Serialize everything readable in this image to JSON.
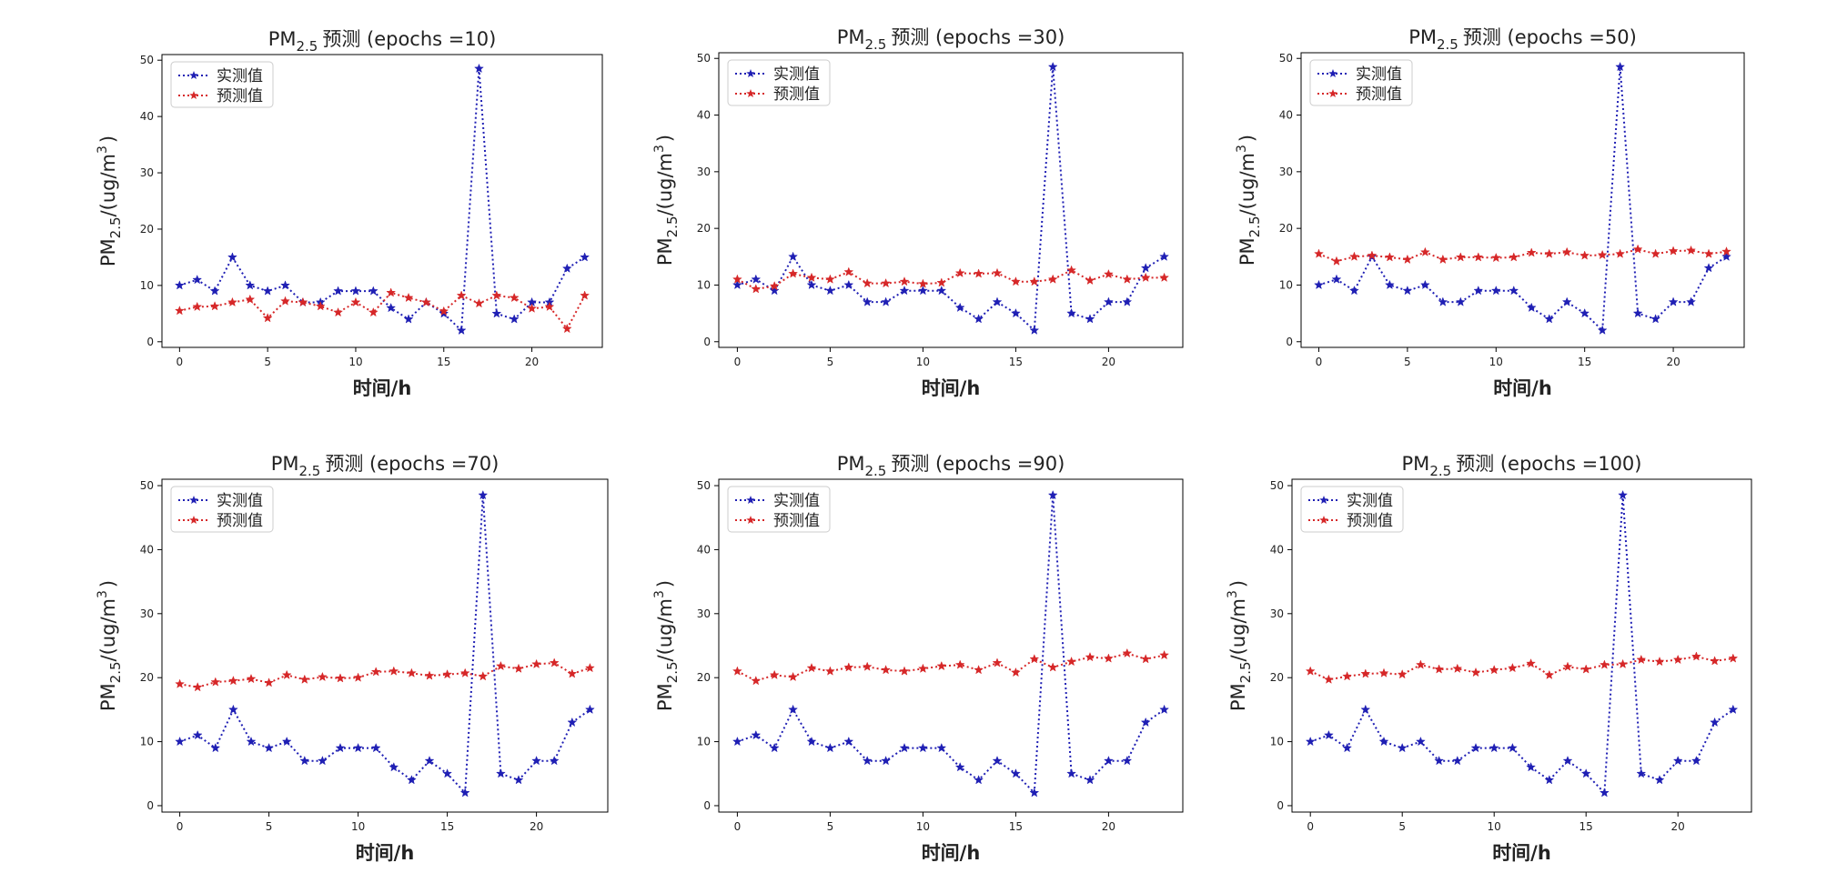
{
  "chart_data": [
    {
      "type": "line",
      "title_prefix": "PM",
      "title_sub": "2.5",
      "title_suffix": "预测 (epochs =10)",
      "xlabel": "时间/h",
      "ylabel_prefix": "PM",
      "ylabel_sub": "2.5",
      "ylabel_suffix": "/(ug/m",
      "ylabel_sup": "3",
      "ylabel_end": ")",
      "xlim": [
        -1,
        24
      ],
      "ylim": [
        -1,
        51
      ],
      "xticks": [
        0,
        5,
        10,
        15,
        20
      ],
      "yticks": [
        0,
        10,
        20,
        30,
        40,
        50
      ],
      "grid": false,
      "legend": "upper-left",
      "series": [
        {
          "name": "实测值",
          "color": "#1f1fb4",
          "values": [
            10,
            11,
            9,
            15,
            10,
            9,
            10,
            7,
            7,
            9,
            9,
            9,
            6,
            4,
            7,
            5,
            2,
            48.5,
            5,
            4,
            7,
            7,
            13,
            15
          ]
        },
        {
          "name": "预测值",
          "color": "#d62728",
          "values": [
            5.5,
            6.2,
            6.3,
            7,
            7.5,
            4.2,
            7.2,
            7,
            6.3,
            5.2,
            7,
            5.2,
            8.7,
            7.8,
            7,
            5.4,
            8.2,
            6.8,
            8.2,
            7.8,
            5.9,
            6.2,
            2.3,
            8.2
          ]
        }
      ]
    },
    {
      "type": "line",
      "title_prefix": "PM",
      "title_sub": "2.5",
      "title_suffix": "预测 (epochs =30)",
      "xlabel": "时间/h",
      "ylabel_prefix": "PM",
      "ylabel_sub": "2.5",
      "ylabel_suffix": "/(ug/m",
      "ylabel_sup": "3",
      "ylabel_end": ")",
      "xlim": [
        -1,
        24
      ],
      "ylim": [
        -1,
        51
      ],
      "xticks": [
        0,
        5,
        10,
        15,
        20
      ],
      "yticks": [
        0,
        10,
        20,
        30,
        40,
        50
      ],
      "grid": false,
      "legend": "upper-left",
      "series": [
        {
          "name": "实测值",
          "color": "#1f1fb4",
          "values": [
            10,
            11,
            9,
            15,
            10,
            9,
            10,
            7,
            7,
            9,
            9,
            9,
            6,
            4,
            7,
            5,
            2,
            48.5,
            5,
            4,
            7,
            7,
            13,
            15
          ]
        },
        {
          "name": "预测值",
          "color": "#d62728",
          "values": [
            11,
            9.3,
            9.8,
            12,
            11.3,
            11,
            12.3,
            10.3,
            10.3,
            10.6,
            10.2,
            10.4,
            12.1,
            12,
            12.1,
            10.6,
            10.6,
            11,
            12.6,
            10.8,
            11.9,
            11,
            11.3,
            11.3
          ]
        }
      ]
    },
    {
      "type": "line",
      "title_prefix": "PM",
      "title_sub": "2.5",
      "title_suffix": "预测 (epochs =50)",
      "xlabel": "时间/h",
      "ylabel_prefix": "PM",
      "ylabel_sub": "2.5",
      "ylabel_suffix": "/(ug/m",
      "ylabel_sup": "3",
      "ylabel_end": ")",
      "xlim": [
        -1,
        24
      ],
      "ylim": [
        -1,
        51
      ],
      "xticks": [
        0,
        5,
        10,
        15,
        20
      ],
      "yticks": [
        0,
        10,
        20,
        30,
        40,
        50
      ],
      "grid": false,
      "legend": "upper-left",
      "series": [
        {
          "name": "实测值",
          "color": "#1f1fb4",
          "values": [
            10,
            11,
            9,
            15,
            10,
            9,
            10,
            7,
            7,
            9,
            9,
            9,
            6,
            4,
            7,
            5,
            2,
            48.5,
            5,
            4,
            7,
            7,
            13,
            15
          ]
        },
        {
          "name": "预测值",
          "color": "#d62728",
          "values": [
            15.5,
            14.2,
            15,
            15.2,
            14.9,
            14.5,
            15.8,
            14.5,
            14.9,
            14.9,
            14.8,
            14.9,
            15.7,
            15.5,
            15.8,
            15.2,
            15.3,
            15.5,
            16.3,
            15.5,
            16,
            16.1,
            15.5,
            15.9
          ]
        }
      ]
    },
    {
      "type": "line",
      "title_prefix": "PM",
      "title_sub": "2.5",
      "title_suffix": "预测 (epochs =70)",
      "xlabel": "时间/h",
      "ylabel_prefix": "PM",
      "ylabel_sub": "2.5",
      "ylabel_suffix": "/(ug/m",
      "ylabel_sup": "3",
      "ylabel_end": ")",
      "xlim": [
        -1,
        24
      ],
      "ylim": [
        -1,
        51
      ],
      "xticks": [
        0,
        5,
        10,
        15,
        20
      ],
      "yticks": [
        0,
        10,
        20,
        30,
        40,
        50
      ],
      "grid": false,
      "legend": "upper-left",
      "series": [
        {
          "name": "实测值",
          "color": "#1f1fb4",
          "values": [
            10,
            11,
            9,
            15,
            10,
            9,
            10,
            7,
            7,
            9,
            9,
            9,
            6,
            4,
            7,
            5,
            2,
            48.5,
            5,
            4,
            7,
            7,
            13,
            15
          ]
        },
        {
          "name": "预测值",
          "color": "#d62728",
          "values": [
            19,
            18.5,
            19.3,
            19.5,
            19.8,
            19.2,
            20.4,
            19.7,
            20.1,
            19.9,
            20,
            20.9,
            21,
            20.7,
            20.3,
            20.5,
            20.7,
            20.2,
            21.8,
            21.4,
            22.1,
            22.3,
            20.6,
            21.5
          ]
        }
      ]
    },
    {
      "type": "line",
      "title_prefix": "PM",
      "title_sub": "2.5",
      "title_suffix": "预测 (epochs =90)",
      "xlabel": "时间/h",
      "ylabel_prefix": "PM",
      "ylabel_sub": "2.5",
      "ylabel_suffix": "/(ug/m",
      "ylabel_sup": "3",
      "ylabel_end": ")",
      "xlim": [
        -1,
        24
      ],
      "ylim": [
        -1,
        51
      ],
      "xticks": [
        0,
        5,
        10,
        15,
        20
      ],
      "yticks": [
        0,
        10,
        20,
        30,
        40,
        50
      ],
      "grid": false,
      "legend": "upper-left",
      "series": [
        {
          "name": "实测值",
          "color": "#1f1fb4",
          "values": [
            10,
            11,
            9,
            15,
            10,
            9,
            10,
            7,
            7,
            9,
            9,
            9,
            6,
            4,
            7,
            5,
            2,
            48.5,
            5,
            4,
            7,
            7,
            13,
            15
          ]
        },
        {
          "name": "预测值",
          "color": "#d62728",
          "values": [
            21,
            19.5,
            20.4,
            20.1,
            21.5,
            21,
            21.6,
            21.7,
            21.2,
            21,
            21.4,
            21.8,
            22,
            21.2,
            22.3,
            20.8,
            22.9,
            21.6,
            22.5,
            23.2,
            23,
            23.8,
            22.9,
            23.5
          ]
        }
      ]
    },
    {
      "type": "line",
      "title_prefix": "PM",
      "title_sub": "2.5",
      "title_suffix": "预测 (epochs =100)",
      "xlabel": "时间/h",
      "ylabel_prefix": "PM",
      "ylabel_sub": "2.5",
      "ylabel_suffix": "/(ug/m",
      "ylabel_sup": "3",
      "ylabel_end": ")",
      "xlim": [
        -1,
        24
      ],
      "ylim": [
        -1,
        51
      ],
      "xticks": [
        0,
        5,
        10,
        15,
        20
      ],
      "yticks": [
        0,
        10,
        20,
        30,
        40,
        50
      ],
      "grid": false,
      "legend": "upper-left",
      "series": [
        {
          "name": "实测值",
          "color": "#1f1fb4",
          "values": [
            10,
            11,
            9,
            15,
            10,
            9,
            10,
            7,
            7,
            9,
            9,
            9,
            6,
            4,
            7,
            5,
            2,
            48.5,
            5,
            4,
            7,
            7,
            13,
            15
          ]
        },
        {
          "name": "预测值",
          "color": "#d62728",
          "values": [
            21,
            19.7,
            20.2,
            20.6,
            20.7,
            20.5,
            22,
            21.3,
            21.4,
            20.8,
            21.2,
            21.5,
            22.2,
            20.4,
            21.7,
            21.3,
            22,
            22.1,
            22.8,
            22.5,
            22.8,
            23.3,
            22.6,
            23
          ]
        }
      ]
    }
  ]
}
